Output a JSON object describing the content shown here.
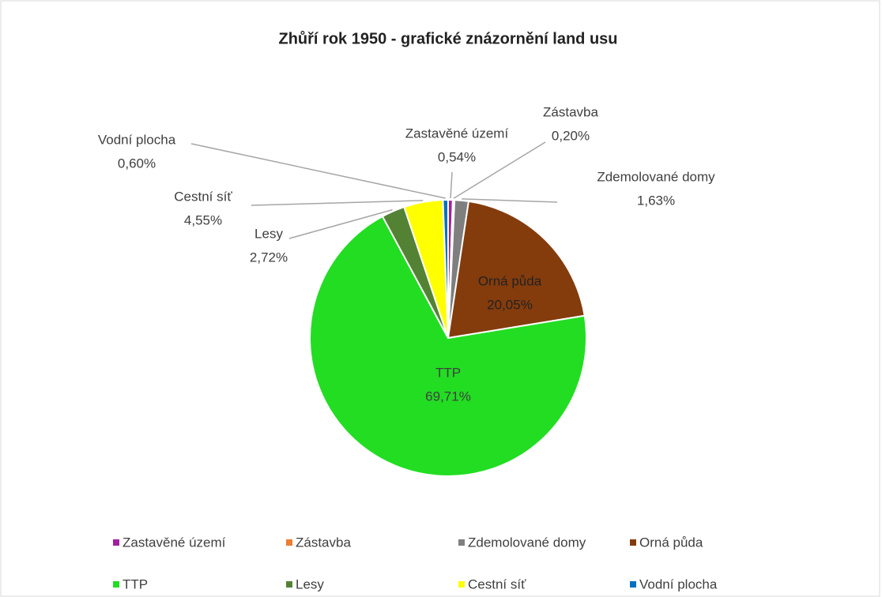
{
  "chart_data": {
    "type": "pie",
    "title": "Zhůří rok 1950 - grafické znázornění land usu",
    "categories": [
      "Zastavěné území",
      "Zástavba",
      "Zdemolované domy",
      "Orná půda",
      "TTP",
      "Lesy",
      "Cestní síť",
      "Vodní plocha"
    ],
    "values": [
      0.54,
      0.2,
      1.63,
      20.05,
      69.71,
      2.72,
      4.55,
      0.6
    ],
    "value_labels": [
      "0,54%",
      "0,20%",
      "1,63%",
      "20,05%",
      "69,71%",
      "2,72%",
      "4,55%",
      "0,60%"
    ],
    "colors": [
      "#a0209f",
      "#ed7d31",
      "#7f7f7f",
      "#843c0c",
      "#22dd22",
      "#548235",
      "#ffff00",
      "#0070c0"
    ],
    "legend": "bottom"
  }
}
